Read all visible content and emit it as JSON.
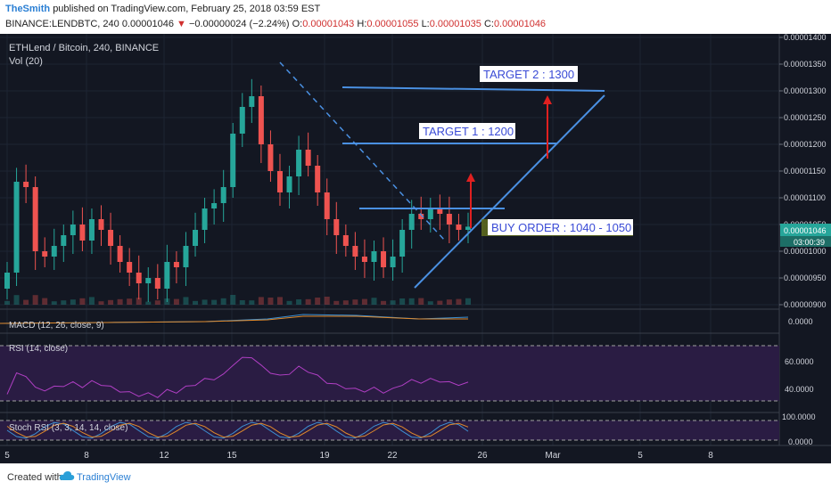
{
  "header": {
    "author": "TheSmith",
    "published": "published on TradingView.com, February 25, 2018 03:59 EST",
    "symbol_line": "BINANCE:LENDBTC, 240 0.00001046",
    "change_arrow": "▼",
    "change": "−0.00000024 (−2.24%)",
    "o_label": "O:",
    "o_value": "0.00001043",
    "h_label": "H:",
    "h_value": "0.00001055",
    "l_label": "L:",
    "l_value": "0.00001035",
    "c_label": "C:",
    "c_value": "0.00001046"
  },
  "chart": {
    "title": "ETHLend / Bitcoin, 240, BINANCE",
    "vol_label": "Vol (20)",
    "macd_label": "MACD (12, 26, close, 9)",
    "rsi_label": "RSI (14, close)",
    "stoch_label": "Stoch RSI (3, 3, 14, 14, close)",
    "price_ticks": [
      "0.00001400",
      "0.00001350",
      "0.00001300",
      "0.00001250",
      "0.00001200",
      "0.00001150",
      "0.00001100",
      "0.00001050",
      "0.00001000",
      "0.00000950",
      "0.00000900"
    ],
    "current_price": "0.00001046",
    "countdown": "03:00:39",
    "macd_tick": "0.0000",
    "rsi_ticks": [
      "60.0000",
      "40.0000"
    ],
    "stoch_ticks": [
      "100.0000",
      "0.0000"
    ],
    "x_ticks": [
      "5",
      "8",
      "12",
      "15",
      "19",
      "22",
      "26",
      "Mar",
      "5",
      "8"
    ],
    "target2": "TARGET 2 : 1300",
    "target1": "TARGET 1 : 1200",
    "buy_order": "BUY ORDER : 1040 - 1050"
  },
  "footer": {
    "created": "Created with",
    "brand": "TradingView"
  },
  "colors": {
    "background": "#131722",
    "up": "#26a69a",
    "down": "#ef5350",
    "annotation_line": "#4a90e2",
    "target_arrow": "#e02020",
    "rsi_band": "#3b1f5c",
    "rsi_line": "#b03fc4"
  },
  "chart_data": {
    "type": "candlestick",
    "symbol": "BINANCE:LENDBTC",
    "interval": "240",
    "ylim": [
      9e-06,
      1.4e-05
    ],
    "annotations": {
      "target2": 1.3e-05,
      "target1": 1.2e-05,
      "buy_order": [
        1.04e-05,
        1.05e-05
      ]
    },
    "closes": [
      9.6e-06,
      1.13e-05,
      1.12e-05,
      1e-05,
      9.9e-06,
      1.01e-05,
      1.03e-05,
      1.05e-05,
      1.02e-05,
      1.06e-05,
      1.04e-05,
      1.01e-05,
      9.8e-06,
      9.6e-06,
      9.4e-06,
      9.5e-06,
      9.3e-06,
      9.8e-06,
      9.7e-06,
      1.01e-05,
      1.04e-05,
      1.08e-05,
      1.09e-05,
      1.12e-05,
      1.22e-05,
      1.27e-05,
      1.29e-05,
      1.2e-05,
      1.15e-05,
      1.11e-05,
      1.14e-05,
      1.19e-05,
      1.16e-05,
      1.11e-05,
      1.06e-05,
      1.03e-05,
      1.01e-05,
      9.9e-06,
      9.8e-06,
      1e-05,
      9.7e-06,
      9.9e-06,
      1.04e-05,
      1.07e-05,
      1.06e-05,
      1.08e-05,
      1.07e-05,
      1.05e-05,
      1.04e-05,
      1.046e-05
    ]
  }
}
